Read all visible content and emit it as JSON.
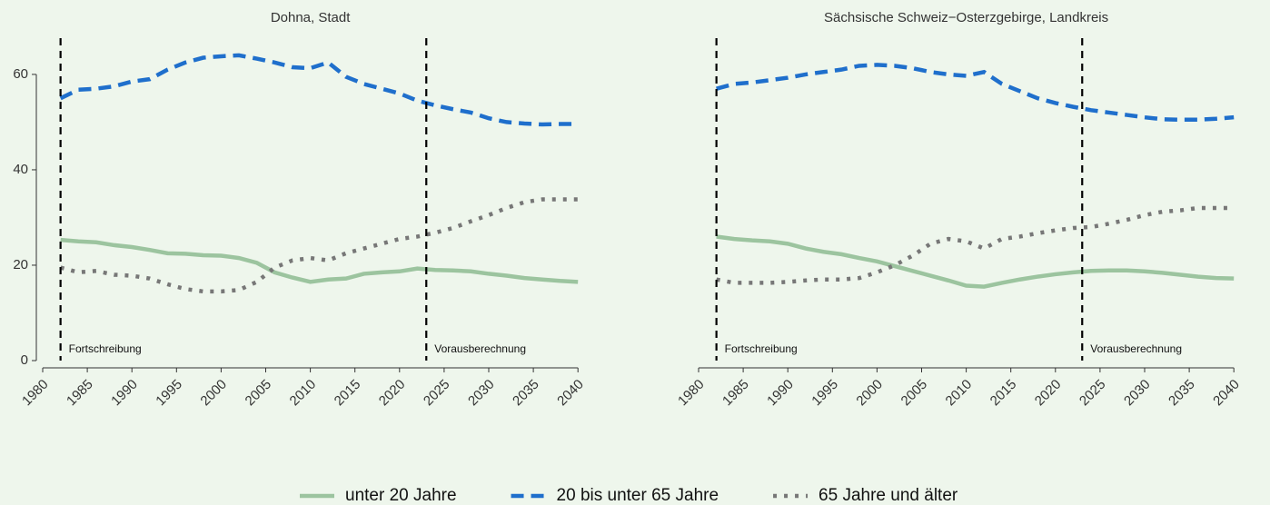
{
  "chart_data": [
    {
      "type": "line",
      "title": "Dohna, Stadt",
      "x": [
        1982,
        1984,
        1986,
        1988,
        1990,
        1992,
        1994,
        1996,
        1998,
        2000,
        2002,
        2004,
        2006,
        2008,
        2010,
        2012,
        2014,
        2016,
        2018,
        2020,
        2022,
        2024,
        2026,
        2028,
        2030,
        2032,
        2034,
        2036,
        2038,
        2040
      ],
      "series": [
        {
          "name": "unter 20 Jahre",
          "color": "#9cc49f",
          "linestyle": "solid",
          "values": [
            25.3,
            25.0,
            24.8,
            24.2,
            23.8,
            23.2,
            22.5,
            22.4,
            22.1,
            22.0,
            21.5,
            20.5,
            18.5,
            17.4,
            16.5,
            17.0,
            17.2,
            18.2,
            18.5,
            18.7,
            19.3,
            19.0,
            18.9,
            18.7,
            18.2,
            17.8,
            17.3,
            17.0,
            16.7,
            16.5
          ]
        },
        {
          "name": "20 bis unter 65 Jahre",
          "color": "#1f6fcc",
          "linestyle": "dashed",
          "values": [
            55.0,
            56.8,
            57.0,
            57.5,
            58.5,
            59.0,
            61.0,
            62.5,
            63.5,
            63.8,
            64.0,
            63.3,
            62.5,
            61.5,
            61.3,
            62.5,
            59.5,
            58.0,
            57.0,
            56.0,
            54.5,
            53.5,
            52.7,
            52.0,
            50.8,
            50.0,
            49.7,
            49.5,
            49.6,
            49.6
          ]
        },
        {
          "name": "65 Jahre und älter",
          "color": "#777777",
          "linestyle": "dotted",
          "values": [
            19.5,
            18.5,
            18.8,
            18.0,
            17.8,
            17.2,
            16.0,
            15.0,
            14.5,
            14.5,
            14.8,
            16.5,
            19.5,
            21.0,
            21.5,
            21.0,
            22.5,
            23.5,
            24.5,
            25.5,
            26.0,
            26.8,
            27.8,
            29.2,
            30.5,
            32.0,
            33.2,
            33.8,
            33.8,
            33.8
          ]
        }
      ],
      "xlim": [
        1978.5,
        2041.5
      ],
      "xticks": [
        1980,
        1985,
        1990,
        1995,
        2000,
        2005,
        2010,
        2015,
        2020,
        2025,
        2030,
        2035,
        2040
      ],
      "ylim": [
        0,
        67.6
      ],
      "yticks": [
        0,
        20,
        40,
        60
      ],
      "vlines": [
        {
          "x": 1982,
          "label": "Fortschreibung"
        },
        {
          "x": 2023,
          "label": "Vorausberechnung"
        }
      ]
    },
    {
      "type": "line",
      "title": "Sächsische Schweiz−Osterzgebirge, Landkreis",
      "x": [
        1982,
        1984,
        1986,
        1988,
        1990,
        1992,
        1994,
        1996,
        1998,
        2000,
        2002,
        2004,
        2006,
        2008,
        2010,
        2012,
        2014,
        2016,
        2018,
        2020,
        2022,
        2024,
        2026,
        2028,
        2030,
        2032,
        2034,
        2036,
        2038,
        2040
      ],
      "series": [
        {
          "color": "#9cc49f",
          "linestyle": "solid",
          "values": [
            26.0,
            25.5,
            25.2,
            25.0,
            24.5,
            23.5,
            22.8,
            22.3,
            21.5,
            20.8,
            19.8,
            18.8,
            17.8,
            16.8,
            15.7,
            15.5,
            16.3,
            17.0,
            17.6,
            18.1,
            18.5,
            18.8,
            18.9,
            18.9,
            18.7,
            18.4,
            18.0,
            17.6,
            17.3,
            17.2
          ]
        },
        {
          "color": "#1f6fcc",
          "linestyle": "dashed",
          "values": [
            57.0,
            58.0,
            58.3,
            58.8,
            59.3,
            60.0,
            60.5,
            61.0,
            61.8,
            62.0,
            61.8,
            61.3,
            60.5,
            60.0,
            59.7,
            60.5,
            58.0,
            56.5,
            55.0,
            54.0,
            53.2,
            52.5,
            52.0,
            51.5,
            51.0,
            50.6,
            50.5,
            50.5,
            50.7,
            51.0
          ]
        },
        {
          "color": "#777777",
          "linestyle": "dotted",
          "values": [
            17.0,
            16.3,
            16.3,
            16.3,
            16.5,
            16.8,
            17.0,
            17.0,
            17.3,
            18.5,
            20.0,
            22.0,
            24.5,
            25.5,
            25.0,
            23.5,
            25.5,
            26.0,
            26.7,
            27.3,
            27.8,
            28.0,
            28.7,
            29.5,
            30.5,
            31.2,
            31.5,
            32.0,
            32.0,
            32.0
          ]
        }
      ],
      "xlim": [
        1978.5,
        2041.5
      ],
      "xticks": [
        1980,
        1985,
        1990,
        1995,
        2000,
        2005,
        2010,
        2015,
        2020,
        2025,
        2030,
        2035,
        2040
      ],
      "ylim": [
        0,
        67.6
      ],
      "vlines": [
        {
          "x": 1982,
          "label": "Fortschreibung"
        },
        {
          "x": 2023,
          "label": "Vorausberechnung"
        }
      ]
    }
  ]
}
